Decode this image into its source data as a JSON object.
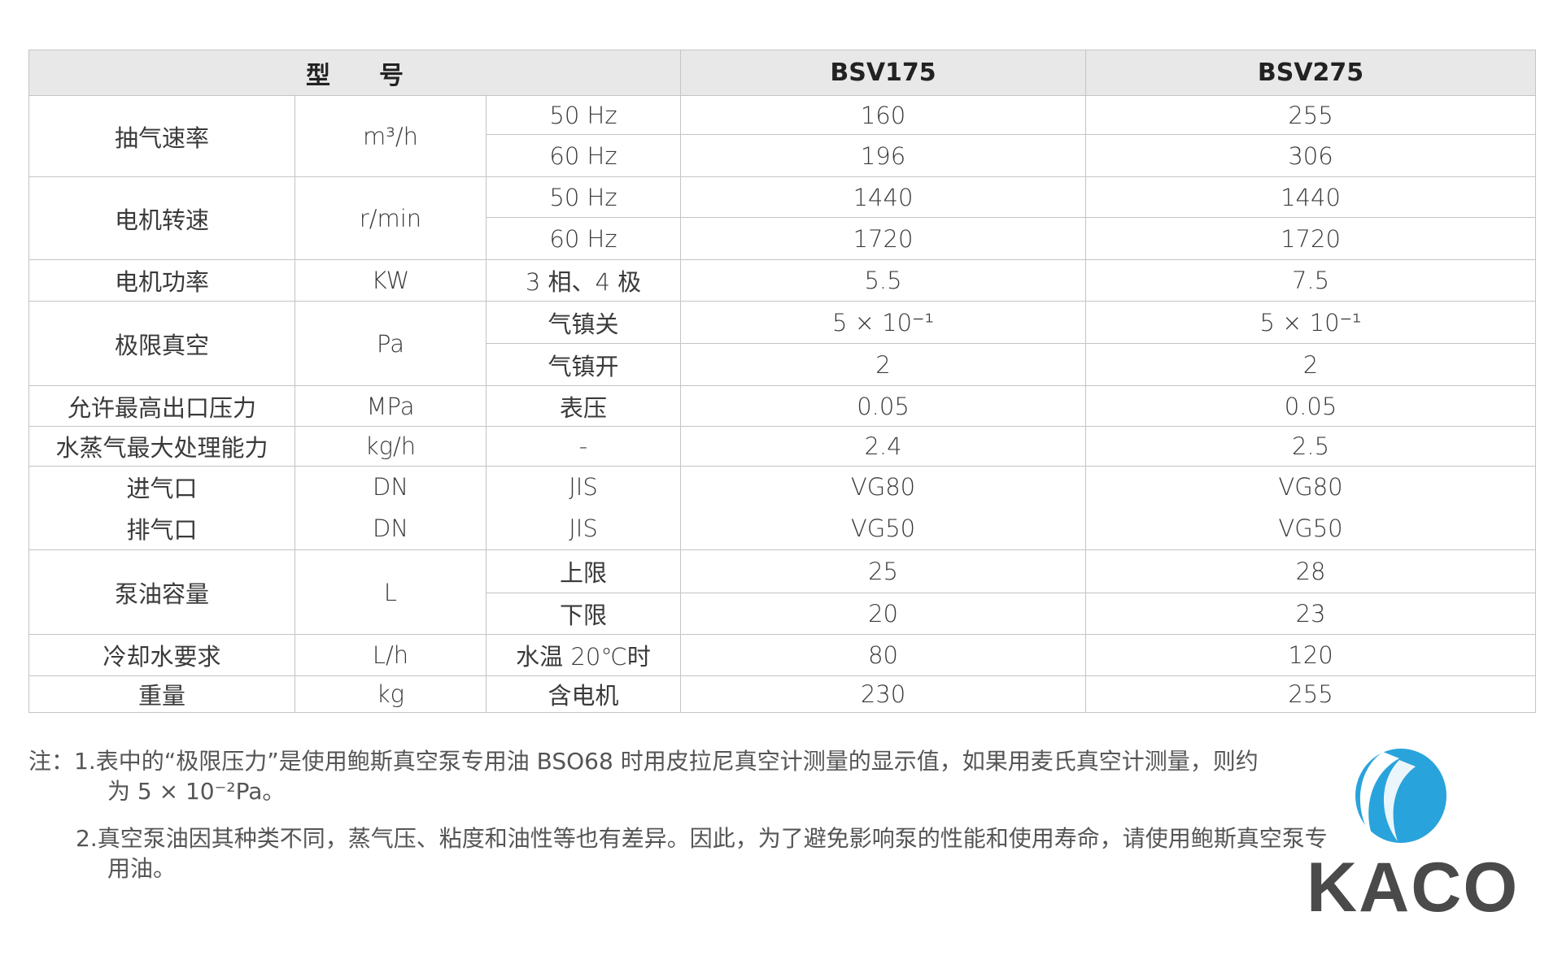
{
  "table": {
    "header": {
      "model_label": "型　　号",
      "col1": "BSV175",
      "col2": "BSV275"
    },
    "groups": [
      {
        "param": "抽气速率",
        "unit": "m³/h",
        "rows": [
          {
            "cond": "50 Hz",
            "v1": "160",
            "v2": "255"
          },
          {
            "cond": "60 Hz",
            "v1": "196",
            "v2": "306"
          }
        ]
      },
      {
        "param": "电机转速",
        "unit": "r/min",
        "rows": [
          {
            "cond": "50 Hz",
            "v1": "1440",
            "v2": "1440"
          },
          {
            "cond": "60 Hz",
            "v1": "1720",
            "v2": "1720"
          }
        ]
      },
      {
        "param": "电机功率",
        "unit": "KW",
        "rows": [
          {
            "cond": "3 相、4 极",
            "v1": "5.5",
            "v2": "7.5"
          }
        ]
      },
      {
        "param": "极限真空",
        "unit": "Pa",
        "rows": [
          {
            "cond": "气镇关",
            "v1": "5 × 10⁻¹",
            "v2": "5 × 10⁻¹"
          },
          {
            "cond": "气镇开",
            "v1": "2",
            "v2": "2"
          }
        ]
      },
      {
        "param": "允许最高出口压力",
        "unit": "MPa",
        "rows": [
          {
            "cond": "表压",
            "v1": "0.05",
            "v2": "0.05"
          }
        ]
      },
      {
        "param": "水蒸气最大处理能力",
        "unit": "kg/h",
        "rows": [
          {
            "cond": "-",
            "v1": "2.4",
            "v2": "2.5"
          }
        ]
      },
      {
        "param": "进气口",
        "unit": "DN",
        "rows": [
          {
            "cond": "JIS",
            "v1": "VG80",
            "v2": "VG80"
          }
        ]
      },
      {
        "param": "排气口",
        "unit": "DN",
        "rows": [
          {
            "cond": "JIS",
            "v1": "VG50",
            "v2": "VG50"
          }
        ]
      },
      {
        "param": "泵油容量",
        "unit": "L",
        "rows": [
          {
            "cond": "上限",
            "v1": "25",
            "v2": "28"
          },
          {
            "cond": "下限",
            "v1": "20",
            "v2": "23"
          }
        ]
      },
      {
        "param": "冷却水要求",
        "unit": "L/h",
        "rows": [
          {
            "cond": "水温 20℃时",
            "v1": "80",
            "v2": "120"
          }
        ]
      },
      {
        "param": "重量",
        "unit": "kg",
        "rows": [
          {
            "cond": "含电机",
            "v1": "230",
            "v2": "255"
          }
        ]
      }
    ]
  },
  "notes": {
    "prefix": "注：",
    "items": [
      {
        "num": "1.",
        "line1": "表中的“极限压力”是使用鲍斯真空泵专用油 BSO68 时用皮拉尼真空计测量的显示值，如果用麦氏真空计测量，则约",
        "line2": "为 5 × 10⁻²Pa。"
      },
      {
        "num": "2.",
        "line1": "真空泵油因其种类不同，蒸气压、粘度和油性等也有差异。因此，为了避免影响泵的性能和使用寿命，请使用鲍斯真空泵专",
        "line2": "用油。"
      }
    ]
  },
  "logo": {
    "text": "KACO",
    "brand_color": "#29a3dc",
    "text_color": "#4a4a4a"
  }
}
